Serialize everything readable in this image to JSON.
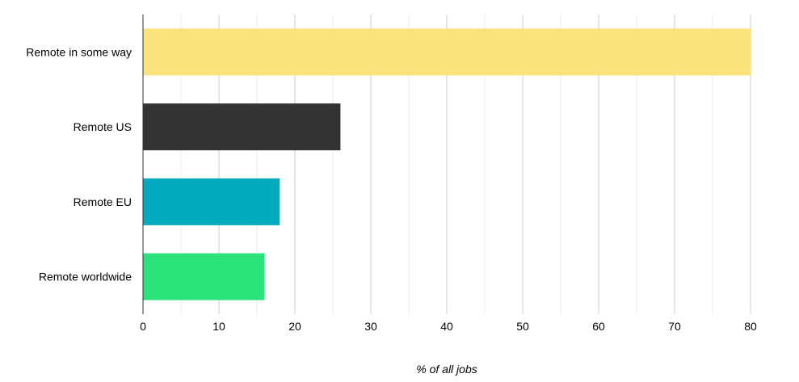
{
  "chart_data": {
    "type": "bar",
    "orientation": "horizontal",
    "categories": [
      "Remote in some way",
      "Remote US",
      "Remote EU",
      "Remote worldwide"
    ],
    "values": [
      80,
      26,
      18,
      16
    ],
    "colors": [
      "#fae27c",
      "#333333",
      "#03a9bc",
      "#2be37a"
    ],
    "xlabel": "% of all jobs",
    "xlim": [
      0,
      80
    ],
    "xticks": [
      0,
      10,
      20,
      30,
      40,
      50,
      60,
      70,
      80
    ],
    "grid": true,
    "legend": "none"
  }
}
